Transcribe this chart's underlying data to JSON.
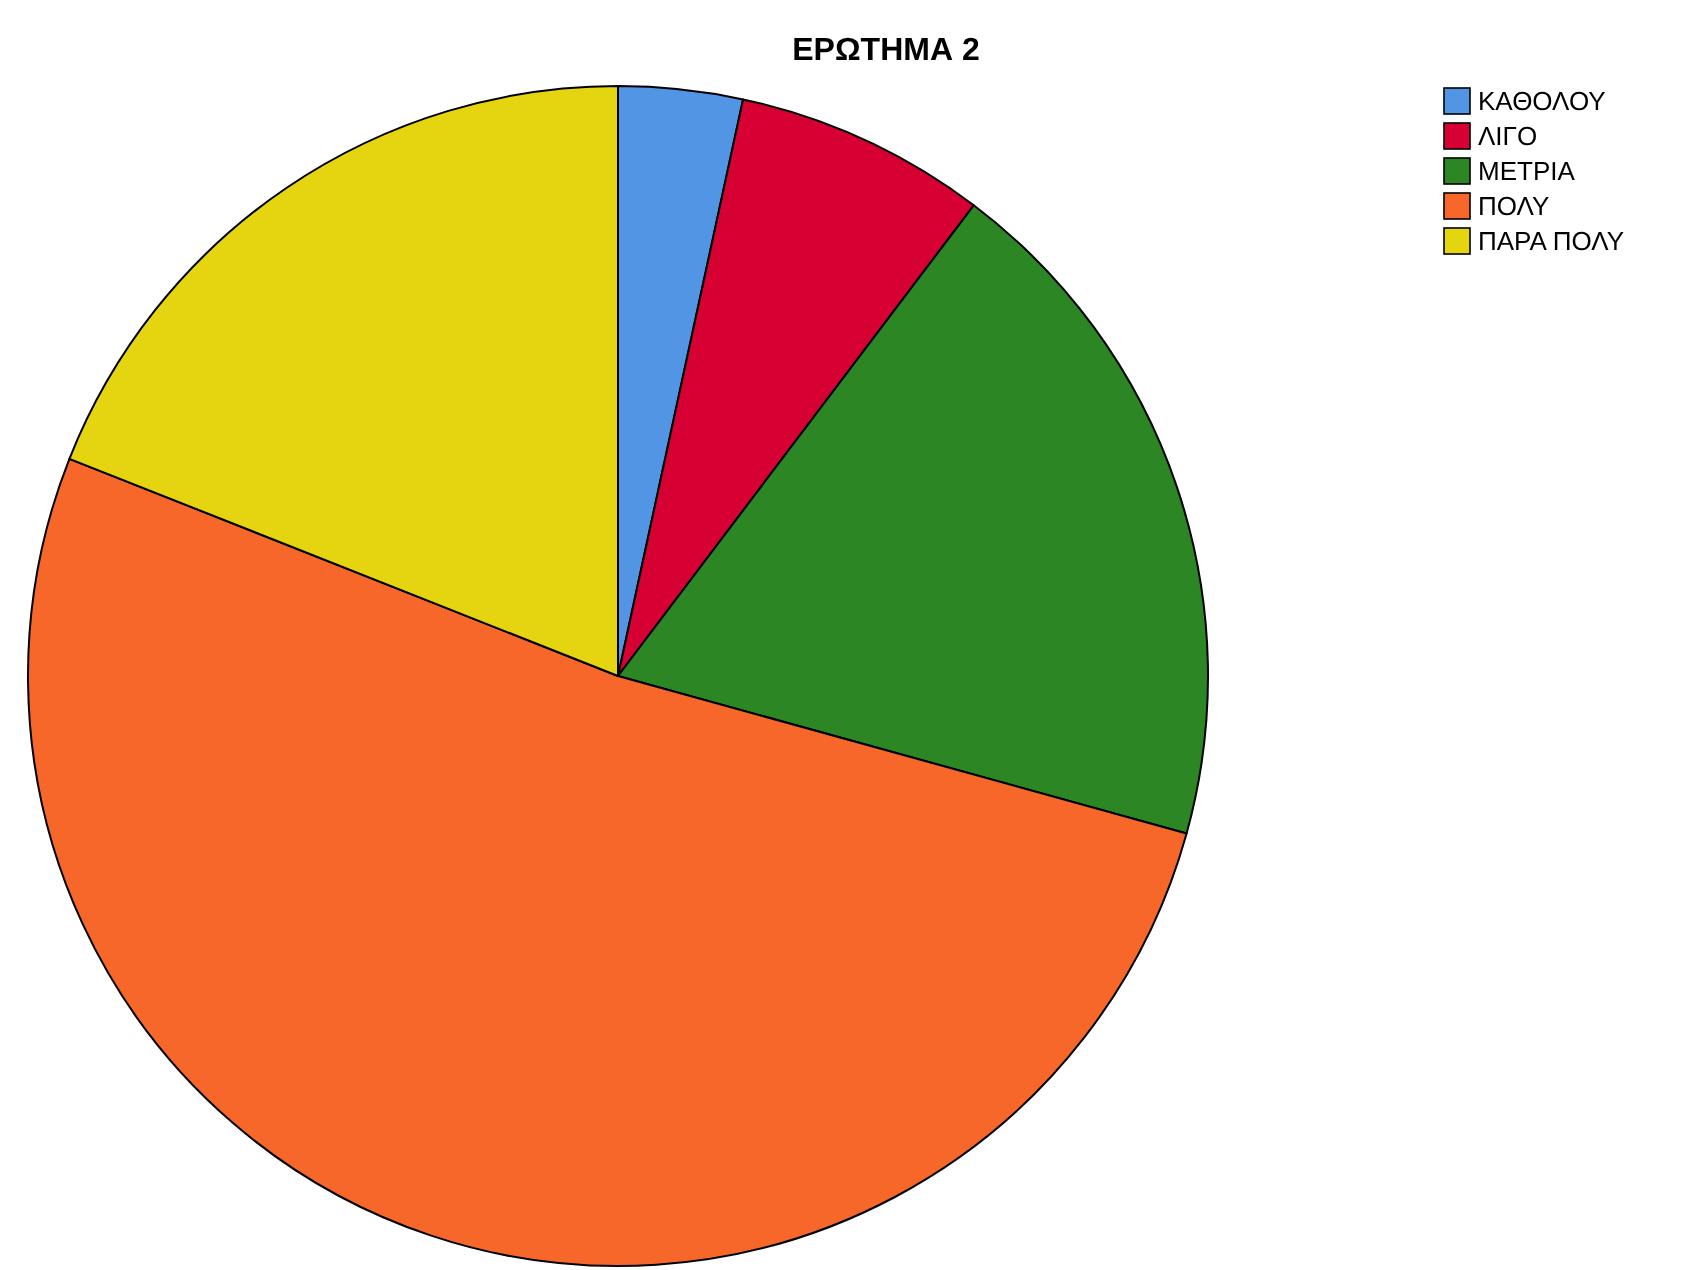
{
  "chart_data": {
    "type": "pie",
    "title": "ΕΡΩΤΗΜΑ 2",
    "categories": [
      "ΚΑΘΟΛΟΥ",
      "ΛΙΓΟ",
      "ΜΕΤΡΙΑ",
      "ΠΟΛΥ",
      "ΠΑΡΑ ΠΟΛΥ"
    ],
    "values": [
      3.4,
      6.9,
      19.0,
      51.7,
      19.0
    ],
    "colors": [
      "#5195e4",
      "#d60032",
      "#2b8623",
      "#f76729",
      "#e5d511"
    ],
    "legend": "top right"
  }
}
